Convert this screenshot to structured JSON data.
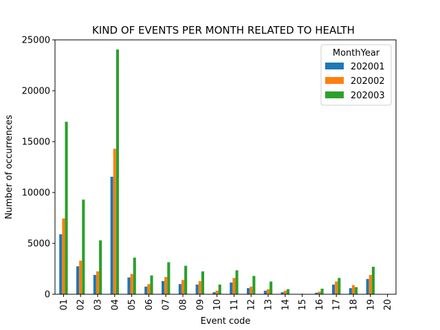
{
  "chart_data": {
    "type": "bar",
    "title": "KIND OF EVENTS PER MONTH RELATED TO HEALTH",
    "xlabel": "Event code",
    "ylabel": "Number of occurrences",
    "ylim": [
      0,
      25000
    ],
    "yticks": [
      0,
      5000,
      10000,
      15000,
      20000,
      25000
    ],
    "grid": false,
    "legend": {
      "title": "MonthYear",
      "placement": "upper-right"
    },
    "categories": [
      "01",
      "02",
      "03",
      "04",
      "05",
      "06",
      "07",
      "08",
      "09",
      "10",
      "11",
      "12",
      "13",
      "14",
      "15",
      "16",
      "17",
      "18",
      "19",
      "20"
    ],
    "series": [
      {
        "name": "202001",
        "color": "#1f77b4",
        "values": [
          5900,
          2750,
          1900,
          11550,
          1650,
          750,
          1300,
          1000,
          950,
          200,
          1150,
          600,
          350,
          200,
          30,
          150,
          950,
          600,
          1500,
          0
        ]
      },
      {
        "name": "202002",
        "color": "#ff7f0e",
        "values": [
          7450,
          3300,
          2250,
          14300,
          2000,
          1000,
          1700,
          1400,
          1300,
          350,
          1600,
          750,
          500,
          350,
          50,
          250,
          1250,
          900,
          1900,
          0
        ]
      },
      {
        "name": "202003",
        "color": "#2ca02c",
        "values": [
          16950,
          9300,
          5300,
          24050,
          3600,
          1850,
          3150,
          2800,
          2250,
          950,
          2350,
          1800,
          1250,
          500,
          30,
          550,
          1600,
          700,
          2700,
          0
        ]
      }
    ]
  }
}
